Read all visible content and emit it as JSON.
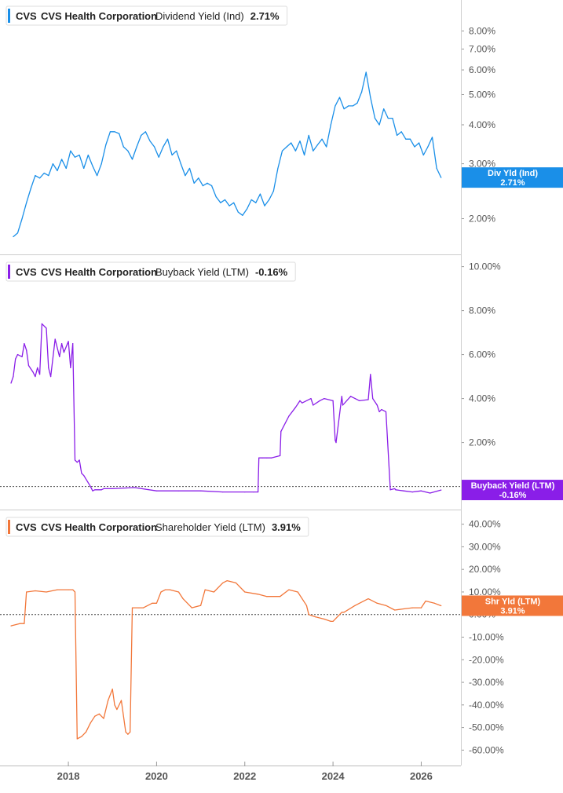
{
  "chart_data": [
    {
      "type": "line",
      "ticker": "CVS",
      "company": "CVS Health Corporation",
      "metric": "Dividend Yield (Ind)",
      "current_value_label": "2.71%",
      "tag_label": "Div Yld (Ind)",
      "tag_value": "2.71%",
      "color": "#1a8fe8",
      "y_scale": "log",
      "y_ticks": [
        "8.00%",
        "7.00%",
        "6.00%",
        "5.00%",
        "4.00%",
        "3.00%",
        "2.00%"
      ],
      "y_tick_values": [
        8,
        7,
        6,
        5,
        4,
        3,
        2
      ],
      "ylim": [
        1.6,
        9.6
      ],
      "zero_line": false,
      "series": [
        {
          "x": [
            2016.75,
            2016.85,
            2016.95,
            2017.05,
            2017.15,
            2017.25,
            2017.35,
            2017.45,
            2017.55,
            2017.65,
            2017.75,
            2017.85,
            2017.95,
            2018.05,
            2018.15,
            2018.25,
            2018.35,
            2018.45,
            2018.55,
            2018.65,
            2018.75,
            2018.85,
            2018.95,
            2019.05,
            2019.15,
            2019.25,
            2019.35,
            2019.45,
            2019.55,
            2019.65,
            2019.75,
            2019.85,
            2019.95,
            2020.05,
            2020.15,
            2020.25,
            2020.35,
            2020.45,
            2020.55,
            2020.65,
            2020.75,
            2020.85,
            2020.95,
            2021.05,
            2021.15,
            2021.25,
            2021.35,
            2021.45,
            2021.55,
            2021.65,
            2021.75,
            2021.85,
            2021.95,
            2022.05,
            2022.15,
            2022.25,
            2022.35,
            2022.45,
            2022.55,
            2022.65,
            2022.75,
            2022.85,
            2022.95,
            2023.05,
            2023.15,
            2023.25,
            2023.35,
            2023.45,
            2023.55,
            2023.65,
            2023.75,
            2023.85,
            2023.95,
            2024.05,
            2024.15,
            2024.25,
            2024.35,
            2024.45,
            2024.55,
            2024.65,
            2024.75,
            2024.85,
            2024.95,
            2025.05,
            2025.15,
            2025.25,
            2025.35,
            2025.45,
            2025.55,
            2025.65,
            2025.75,
            2025.85,
            2025.95,
            2026.05,
            2026.15,
            2026.25,
            2026.35,
            2026.45
          ],
          "values": [
            1.75,
            1.8,
            2.0,
            2.25,
            2.5,
            2.75,
            2.7,
            2.8,
            2.75,
            3.0,
            2.85,
            3.1,
            2.9,
            3.3,
            3.15,
            3.2,
            2.9,
            3.2,
            2.95,
            2.75,
            3.0,
            3.45,
            3.8,
            3.8,
            3.75,
            3.4,
            3.3,
            3.1,
            3.4,
            3.7,
            3.8,
            3.55,
            3.4,
            3.15,
            3.4,
            3.6,
            3.2,
            3.3,
            3.0,
            2.75,
            2.9,
            2.6,
            2.7,
            2.55,
            2.6,
            2.55,
            2.35,
            2.25,
            2.3,
            2.2,
            2.25,
            2.1,
            2.05,
            2.15,
            2.3,
            2.25,
            2.4,
            2.2,
            2.3,
            2.45,
            2.9,
            3.3,
            3.4,
            3.5,
            3.3,
            3.55,
            3.2,
            3.7,
            3.3,
            3.45,
            3.6,
            3.4,
            4.0,
            4.6,
            4.9,
            4.5,
            4.6,
            4.6,
            4.7,
            5.1,
            5.9,
            4.9,
            4.2,
            4.0,
            4.5,
            4.2,
            4.2,
            3.7,
            3.8,
            3.6,
            3.6,
            3.4,
            3.5,
            3.2,
            3.4,
            3.65,
            2.9,
            2.71
          ]
        }
      ]
    },
    {
      "type": "line",
      "ticker": "CVS",
      "company": "CVS Health Corporation",
      "metric": "Buyback Yield (LTM)",
      "current_value_label": "-0.16%",
      "tag_label": "Buyback Yield (LTM)",
      "tag_value": "-0.16%",
      "color": "#8a1ee8",
      "y_scale": "linear",
      "y_ticks": [
        "10.00%",
        "8.00%",
        "6.00%",
        "4.00%",
        "2.00%"
      ],
      "y_tick_values": [
        10,
        8,
        6,
        4,
        2
      ],
      "ylim": [
        -0.8,
        10.2
      ],
      "zero_line": true,
      "series": [
        {
          "x": [
            2016.7,
            2016.75,
            2016.8,
            2016.85,
            2016.95,
            2017.0,
            2017.05,
            2017.1,
            2017.2,
            2017.25,
            2017.3,
            2017.35,
            2017.4,
            2017.5,
            2017.55,
            2017.6,
            2017.7,
            2017.8,
            2017.85,
            2017.9,
            2018.0,
            2018.05,
            2018.1,
            2018.15,
            2018.2,
            2018.25,
            2018.3,
            2018.35,
            2018.5,
            2018.55,
            2018.6,
            2018.75,
            2018.8,
            2019.0,
            2019.5,
            2020.0,
            2020.5,
            2021.0,
            2021.5,
            2022.0,
            2022.2,
            2022.3,
            2022.32,
            2022.4,
            2022.5,
            2022.6,
            2022.8,
            2022.82,
            2023.0,
            2023.15,
            2023.25,
            2023.3,
            2023.5,
            2023.55,
            2023.7,
            2023.8,
            2024.0,
            2024.05,
            2024.07,
            2024.2,
            2024.22,
            2024.4,
            2024.5,
            2024.6,
            2024.8,
            2024.85,
            2024.9,
            2025.0,
            2025.05,
            2025.1,
            2025.2,
            2025.3,
            2025.4,
            2025.42,
            2025.6,
            2025.8,
            2026.0,
            2026.2,
            2026.45
          ],
          "values": [
            4.7,
            5.0,
            5.8,
            6.0,
            5.9,
            6.5,
            6.2,
            5.5,
            5.2,
            5.0,
            5.4,
            5.1,
            7.4,
            7.2,
            5.4,
            5.0,
            6.7,
            5.9,
            6.5,
            6.1,
            6.6,
            5.4,
            6.5,
            1.2,
            1.1,
            1.2,
            0.6,
            0.5,
            0.0,
            -0.2,
            -0.15,
            -0.15,
            -0.1,
            -0.1,
            -0.05,
            -0.2,
            -0.2,
            -0.2,
            -0.25,
            -0.25,
            -0.25,
            -0.25,
            1.3,
            1.3,
            1.3,
            1.3,
            1.4,
            2.5,
            3.2,
            3.6,
            3.9,
            3.8,
            4.0,
            3.7,
            3.9,
            4.0,
            3.9,
            2.1,
            2.0,
            4.1,
            3.7,
            4.1,
            4.0,
            3.9,
            3.95,
            5.1,
            4.0,
            3.7,
            3.4,
            3.5,
            3.4,
            -0.15,
            -0.1,
            -0.15,
            -0.2,
            -0.25,
            -0.2,
            -0.3,
            -0.16
          ]
        }
      ]
    },
    {
      "type": "line",
      "ticker": "CVS",
      "company": "CVS Health Corporation",
      "metric": "Shareholder Yield (LTM)",
      "current_value_label": "3.91%",
      "tag_label": "Shr Yld (LTM)",
      "tag_value": "3.91%",
      "color": "#f2773a",
      "y_scale": "linear",
      "y_ticks": [
        "40.00%",
        "30.00%",
        "20.00%",
        "10.00%",
        "0.00%",
        "-10.00%",
        "-20.00%",
        "-30.00%",
        "-40.00%",
        "-50.00%",
        "-60.00%"
      ],
      "y_tick_values": [
        40,
        30,
        20,
        10,
        0,
        -10,
        -20,
        -30,
        -40,
        -50,
        -60
      ],
      "ylim": [
        -63,
        43
      ],
      "zero_line": true,
      "series": [
        {
          "x": [
            2016.7,
            2016.9,
            2017.0,
            2017.05,
            2017.25,
            2017.5,
            2017.75,
            2018.0,
            2018.1,
            2018.15,
            2018.2,
            2018.3,
            2018.4,
            2018.5,
            2018.6,
            2018.7,
            2018.8,
            2018.9,
            2019.0,
            2019.05,
            2019.1,
            2019.2,
            2019.3,
            2019.35,
            2019.4,
            2019.45,
            2019.6,
            2019.7,
            2019.9,
            2020.0,
            2020.1,
            2020.2,
            2020.3,
            2020.5,
            2020.6,
            2020.8,
            2021.0,
            2021.1,
            2021.3,
            2021.5,
            2021.6,
            2021.8,
            2022.0,
            2022.3,
            2022.5,
            2022.8,
            2023.0,
            2023.2,
            2023.4,
            2023.45,
            2023.6,
            2023.8,
            2023.95,
            2024.0,
            2024.2,
            2024.25,
            2024.5,
            2024.8,
            2025.0,
            2025.2,
            2025.4,
            2025.6,
            2025.8,
            2026.0,
            2026.1,
            2026.3,
            2026.45
          ],
          "values": [
            -5,
            -4,
            -4,
            10,
            10.5,
            10,
            11,
            11,
            11,
            10,
            -55,
            -54,
            -52,
            -48,
            -45,
            -44,
            -46,
            -38,
            -33,
            -40,
            -42,
            -38,
            -52,
            -53,
            -52,
            3,
            3,
            3,
            5,
            5,
            10,
            11,
            11,
            10,
            7,
            3,
            4,
            11,
            10,
            14,
            15,
            14,
            10,
            9,
            8,
            8,
            11,
            10,
            4,
            0,
            -1,
            -2,
            -3,
            -3,
            1,
            1,
            4,
            7,
            5,
            4,
            2,
            2.5,
            3,
            3,
            6,
            5,
            3.91
          ]
        }
      ]
    }
  ],
  "x_axis": {
    "ticks": [
      "2018",
      "2020",
      "2022",
      "2024",
      "2026"
    ],
    "tick_values": [
      2018,
      2020,
      2022,
      2024,
      2026
    ],
    "xlim": [
      2016.45,
      2026.9
    ]
  }
}
